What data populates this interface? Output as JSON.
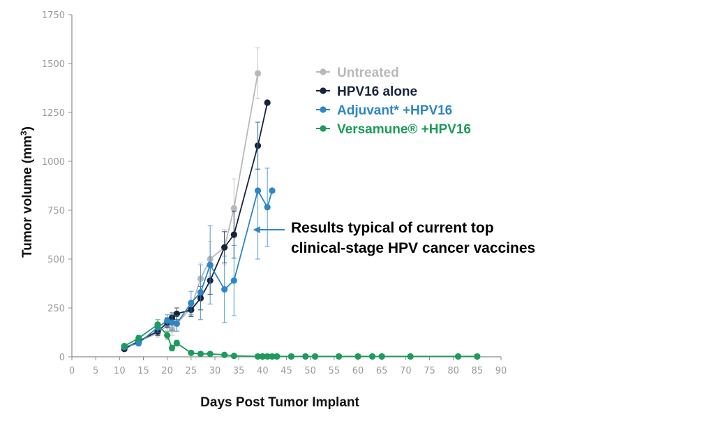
{
  "chart_data": {
    "type": "line",
    "title": "",
    "xlabel": "Days Post Tumor Implant",
    "ylabel": "Tumor volume (mm",
    "ylabel_superscript": "3",
    "ylabel_suffix": ")",
    "xlim": [
      0,
      90
    ],
    "ylim": [
      0,
      1750
    ],
    "xticks": [
      0,
      5,
      10,
      15,
      20,
      25,
      30,
      35,
      40,
      45,
      50,
      55,
      60,
      65,
      70,
      75,
      80,
      85,
      90
    ],
    "yticks": [
      0,
      250,
      500,
      750,
      1000,
      1250,
      1500,
      1750
    ],
    "grid": false,
    "legend_position": "top-right",
    "series": [
      {
        "name": "Untreated",
        "color": "#b9b9b9",
        "points": [
          [
            11,
            45
          ],
          [
            14,
            80
          ],
          [
            18,
            120
          ],
          [
            20,
            160
          ],
          [
            21,
            140
          ],
          [
            22,
            170
          ],
          [
            25,
            250
          ],
          [
            27,
            400
          ],
          [
            29,
            500
          ],
          [
            32,
            560
          ],
          [
            34,
            760
          ],
          [
            39,
            1450
          ]
        ],
        "errors": [
          10,
          15,
          20,
          25,
          30,
          35,
          40,
          80,
          90,
          90,
          150,
          130
        ]
      },
      {
        "name": "HPV16 alone",
        "color": "#17233d",
        "points": [
          [
            11,
            40
          ],
          [
            14,
            80
          ],
          [
            18,
            130
          ],
          [
            20,
            175
          ],
          [
            21,
            200
          ],
          [
            22,
            220
          ],
          [
            25,
            240
          ],
          [
            27,
            300
          ],
          [
            29,
            390
          ],
          [
            32,
            560
          ],
          [
            34,
            625
          ],
          [
            39,
            1080
          ],
          [
            41,
            1300
          ]
        ],
        "errors": [
          10,
          15,
          20,
          25,
          25,
          30,
          35,
          60,
          70,
          80,
          120,
          120,
          0
        ]
      },
      {
        "name": "Adjuvant* +HPV16",
        "color": "#2e86c5",
        "points": [
          [
            11,
            50
          ],
          [
            14,
            70
          ],
          [
            18,
            150
          ],
          [
            20,
            185
          ],
          [
            21,
            175
          ],
          [
            22,
            170
          ],
          [
            25,
            275
          ],
          [
            27,
            330
          ],
          [
            29,
            470
          ],
          [
            32,
            345
          ],
          [
            34,
            390
          ],
          [
            39,
            850
          ],
          [
            41,
            765
          ],
          [
            42,
            850
          ]
        ],
        "errors": [
          10,
          15,
          25,
          30,
          40,
          40,
          60,
          140,
          200,
          170,
          180,
          350,
          200,
          0
        ]
      },
      {
        "name": "Versamune® +HPV16",
        "color": "#1d9a5c",
        "points": [
          [
            11,
            55
          ],
          [
            14,
            95
          ],
          [
            18,
            165
          ],
          [
            20,
            110
          ],
          [
            21,
            45
          ],
          [
            22,
            70
          ],
          [
            25,
            20
          ],
          [
            27,
            15
          ],
          [
            29,
            15
          ],
          [
            32,
            10
          ],
          [
            34,
            5
          ],
          [
            39,
            2
          ],
          [
            40,
            2
          ],
          [
            41,
            2
          ],
          [
            42,
            2
          ],
          [
            43,
            2
          ],
          [
            46,
            2
          ],
          [
            49,
            2
          ],
          [
            51,
            2
          ],
          [
            56,
            2
          ],
          [
            60,
            2
          ],
          [
            63,
            2
          ],
          [
            65,
            2
          ],
          [
            71,
            2
          ],
          [
            81,
            2
          ],
          [
            85,
            2
          ]
        ],
        "errors": [
          10,
          15,
          25,
          20,
          15,
          15,
          10,
          8,
          6,
          5,
          3,
          0,
          0,
          0,
          0,
          0,
          0,
          0,
          0,
          0,
          0,
          0,
          0,
          0,
          0,
          0
        ]
      }
    ],
    "legend": [
      {
        "label": "Untreated",
        "color": "#b9b9b9"
      },
      {
        "label": "HPV16 alone",
        "color": "#17233d"
      },
      {
        "label": "Adjuvant* +HPV16",
        "color": "#2e86c5"
      },
      {
        "label": "Versamune® +HPV16",
        "color": "#1d9a5c"
      }
    ],
    "annotation": {
      "lines": [
        "Results typical of current top",
        "clinical-stage HPV cancer vaccines"
      ],
      "color": "#2e86c5",
      "arrow_target": [
        38,
        650
      ]
    }
  }
}
